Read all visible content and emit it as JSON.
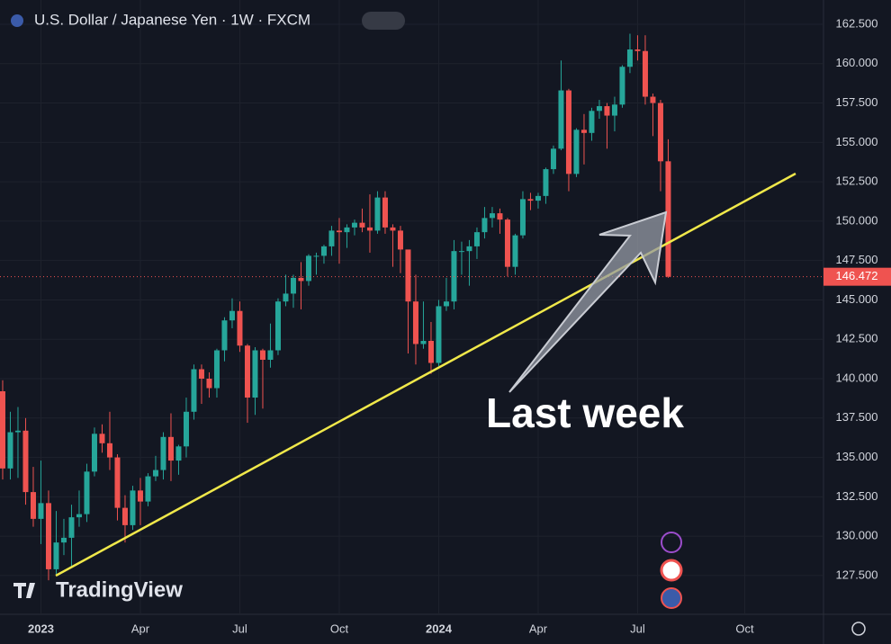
{
  "chart_data": {
    "type": "candlestick",
    "title": "U.S. Dollar / Japanese Yen · 1W · FXCM",
    "watermark": "TradingView",
    "annotation": "Last week",
    "up_color": "#26a69a",
    "down_color": "#ef5350",
    "open": [
      139.2,
      134.3,
      136.6,
      136.7,
      132.8,
      131.1,
      132.1,
      127.9,
      129.6,
      129.9,
      131.2,
      131.4,
      134.1,
      136.5,
      135.9,
      135.0,
      131.8,
      130.7,
      132.9,
      132.2,
      133.8,
      134.2,
      136.3,
      134.8,
      135.7,
      137.9,
      140.6,
      140.0,
      139.4,
      141.8,
      143.7,
      144.3,
      142.1,
      138.8,
      141.8,
      141.2,
      141.8,
      144.9,
      145.4,
      146.4,
      146.2,
      147.8,
      147.8,
      148.4,
      149.4,
      149.3,
      149.6,
      149.9,
      149.6,
      149.4,
      151.5,
      149.6,
      149.4,
      148.2,
      144.9,
      142.2,
      142.4,
      141.0,
      144.6,
      144.9,
      148.1,
      148.1,
      148.4,
      149.3,
      150.2,
      150.5,
      150.1,
      147.1,
      149.1,
      151.4,
      151.3,
      151.6,
      153.3,
      154.6,
      158.3,
      153.0,
      155.8,
      155.6,
      157.0,
      157.3,
      156.7,
      157.4,
      159.8,
      160.9,
      160.8,
      157.9,
      157.5,
      153.8
    ],
    "high": [
      139.9,
      137.9,
      138.2,
      137.5,
      134.4,
      134.8,
      132.9,
      131.6,
      131.1,
      132.0,
      132.9,
      134.6,
      136.9,
      137.1,
      137.9,
      135.2,
      132.6,
      133.2,
      133.7,
      134.0,
      135.1,
      136.6,
      137.8,
      135.8,
      138.8,
      140.9,
      140.9,
      140.4,
      141.9,
      143.9,
      145.1,
      144.9,
      142.2,
      142.0,
      141.9,
      143.5,
      145.1,
      146.6,
      146.6,
      147.4,
      147.9,
      148.0,
      148.5,
      149.7,
      150.2,
      149.8,
      150.1,
      150.8,
      151.7,
      151.9,
      151.9,
      149.8,
      149.7,
      148.0,
      146.6,
      144.9,
      143.6,
      145.0,
      146.4,
      148.8,
      148.7,
      148.8,
      149.6,
      150.9,
      150.9,
      150.8,
      150.2,
      149.2,
      151.9,
      151.8,
      151.8,
      153.4,
      154.8,
      160.2,
      158.4,
      155.9,
      156.8,
      157.2,
      157.7,
      157.5,
      157.9,
      159.9,
      161.9,
      161.8,
      161.8,
      158.1,
      157.7,
      155.2
    ],
    "low": [
      133.6,
      133.6,
      133.7,
      132.0,
      130.6,
      129.5,
      127.2,
      127.6,
      128.8,
      128.1,
      130.6,
      130.9,
      133.8,
      135.3,
      134.2,
      131.0,
      129.6,
      130.4,
      130.7,
      131.9,
      133.5,
      133.6,
      133.5,
      133.9,
      135.0,
      137.4,
      138.4,
      138.8,
      138.8,
      141.1,
      143.2,
      141.7,
      137.2,
      137.7,
      138.1,
      140.7,
      141.5,
      144.6,
      144.5,
      144.4,
      145.9,
      146.6,
      147.3,
      147.8,
      147.3,
      148.3,
      149.1,
      149.3,
      148.0,
      149.2,
      149.2,
      147.1,
      146.7,
      141.6,
      140.9,
      141.9,
      140.3,
      140.8,
      144.3,
      144.4,
      146.6,
      145.9,
      147.6,
      148.9,
      149.6,
      149.2,
      146.5,
      146.6,
      148.9,
      150.7,
      150.8,
      151.1,
      153.0,
      154.5,
      151.9,
      152.8,
      153.6,
      155.1,
      156.5,
      154.6,
      155.7,
      157.2,
      159.4,
      160.2,
      157.4,
      155.4,
      151.9,
      146.4
    ],
    "close": [
      134.3,
      136.6,
      136.7,
      132.8,
      131.1,
      132.1,
      127.9,
      129.6,
      129.9,
      131.2,
      131.4,
      134.1,
      136.5,
      135.9,
      135.0,
      131.8,
      130.7,
      132.9,
      132.2,
      133.8,
      134.2,
      136.3,
      134.8,
      135.7,
      137.9,
      140.6,
      140.0,
      139.4,
      141.8,
      143.7,
      144.3,
      142.1,
      138.8,
      141.8,
      141.2,
      141.8,
      144.9,
      145.4,
      146.4,
      146.2,
      147.8,
      147.8,
      148.4,
      149.4,
      149.3,
      149.6,
      149.9,
      149.6,
      149.4,
      151.5,
      149.6,
      149.4,
      148.2,
      144.9,
      142.2,
      142.4,
      141.0,
      144.6,
      144.9,
      148.1,
      148.1,
      148.4,
      149.3,
      150.2,
      150.5,
      150.1,
      147.1,
      149.1,
      151.4,
      151.3,
      151.6,
      153.3,
      154.6,
      158.3,
      153.0,
      155.8,
      155.6,
      157.0,
      157.3,
      156.7,
      157.4,
      159.8,
      160.9,
      160.8,
      157.9,
      157.5,
      153.8,
      146.472
    ],
    "xlim": [
      -0.35,
      107.3
    ],
    "xticks": [
      {
        "value": 5,
        "label": "2023"
      },
      {
        "value": 18,
        "label": "Apr"
      },
      {
        "value": 31,
        "label": "Jul"
      },
      {
        "value": 44,
        "label": "Oct"
      },
      {
        "value": 57,
        "label": "2024"
      },
      {
        "value": 70,
        "label": "Apr"
      },
      {
        "value": 83,
        "label": "Jul"
      },
      {
        "value": 97,
        "label": "Oct"
      }
    ],
    "ylim": [
      125.04,
      164.04
    ],
    "yticks": [
      {
        "value": 127.5,
        "label": "127.500"
      },
      {
        "value": 130,
        "label": "130.000"
      },
      {
        "value": 132.5,
        "label": "132.500"
      },
      {
        "value": 135,
        "label": "135.000"
      },
      {
        "value": 137.5,
        "label": "137.500"
      },
      {
        "value": 140,
        "label": "140.000"
      },
      {
        "value": 142.5,
        "label": "142.500"
      },
      {
        "value": 145,
        "label": "145.000"
      },
      {
        "value": 147.5,
        "label": "147.500"
      },
      {
        "value": 150,
        "label": "150.000"
      },
      {
        "value": 152.5,
        "label": "152.500"
      },
      {
        "value": 155,
        "label": "155.000"
      },
      {
        "value": 157.5,
        "label": "157.500"
      },
      {
        "value": 160,
        "label": "160.000"
      },
      {
        "value": 162.5,
        "label": "162.500"
      }
    ]
  }
}
